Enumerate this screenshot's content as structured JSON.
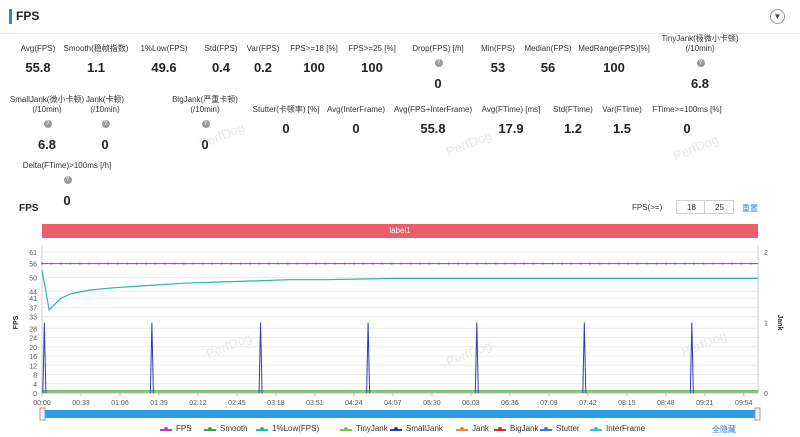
{
  "header": {
    "title": "FPS",
    "collapse_icon": "chevron-down-icon"
  },
  "metrics": [
    {
      "label": "Avg(FPS)",
      "value": "55.8",
      "help": false
    },
    {
      "label": "Smooth(稳帧指数)",
      "value": "1.1",
      "help": false
    },
    {
      "label": "1%Low(FPS)",
      "value": "49.6",
      "help": false
    },
    {
      "label": "Std(FPS)",
      "value": "0.4",
      "help": false
    },
    {
      "label": "Var(FPS)",
      "value": "0.2",
      "help": false
    },
    {
      "label": "FPS>=18 [%]",
      "value": "100",
      "help": false
    },
    {
      "label": "FPS>=25 [%]",
      "value": "100",
      "help": false
    },
    {
      "label": "Drop(FPS) [/h]",
      "value": "0",
      "help": true
    },
    {
      "label": "Min(FPS)",
      "value": "53",
      "help": false
    },
    {
      "label": "Median(FPS)",
      "value": "56",
      "help": false
    },
    {
      "label": "MedRange(FPS)[%]",
      "value": "100",
      "help": false
    },
    {
      "label": "TinyJank(极微小卡顿)\n(/10min)",
      "value": "6.8",
      "help": true
    },
    {
      "label": "SmallJank(微小卡顿)\n(/10min)",
      "value": "6.8",
      "help": true
    },
    {
      "label": "Jank(卡顿)\n(/10min)",
      "value": "0",
      "help": true
    },
    {
      "label": "BigJank(严重卡顿)\n(/10min)",
      "value": "0",
      "help": true
    },
    {
      "label": "Stutter(卡顿率) [%]",
      "value": "0",
      "help": false
    },
    {
      "label": "Avg(InterFrame)",
      "value": "0",
      "help": false
    },
    {
      "label": "Avg(FPS+InterFrame)",
      "value": "55.8",
      "help": false
    },
    {
      "label": "Avg(FTime) [ms]",
      "value": "17.9",
      "help": false
    },
    {
      "label": "Std(FTime)",
      "value": "1.2",
      "help": false
    },
    {
      "label": "Var(FTime)",
      "value": "1.5",
      "help": false
    },
    {
      "label": "FTime>=100ms [%]",
      "value": "0",
      "help": false
    },
    {
      "label": "Delta(FTime)>100ms [/h]",
      "value": "0",
      "help": true
    }
  ],
  "watermark": "PerfDog",
  "chart_section": {
    "title": "FPS",
    "filter_label": "FPS(>=)",
    "filter_low": "18",
    "filter_high": "25",
    "reset_label": "重置",
    "label_bar": "label1",
    "label_bar_color": "#ec5c6a",
    "hide_all_label": "全隐藏"
  },
  "chart_data": {
    "type": "line",
    "x_ticks": [
      "00:00",
      "00:33",
      "01:06",
      "01:39",
      "02:12",
      "02:45",
      "03:18",
      "03:51",
      "04:24",
      "04:57",
      "05:30",
      "06:03",
      "06:36",
      "07:09",
      "07:42",
      "08:15",
      "08:48",
      "09:21",
      "09:54"
    ],
    "x_tick_seconds": [
      0,
      33,
      66,
      99,
      132,
      165,
      198,
      231,
      264,
      297,
      330,
      363,
      396,
      429,
      462,
      495,
      528,
      561,
      594
    ],
    "x_range_seconds": [
      0,
      606
    ],
    "y_left_label": "FPS",
    "y_left_ticks": [
      0,
      4,
      8,
      12,
      16,
      20,
      24,
      28,
      33,
      37,
      41,
      44,
      50,
      56,
      61
    ],
    "y_left_range": [
      0,
      61
    ],
    "y_right_label": "Jank",
    "y_right_ticks": [
      0,
      1,
      2
    ],
    "y_right_range": [
      0,
      2
    ],
    "series": [
      {
        "name": "FPS",
        "color": "#c13dc1",
        "axis": "left",
        "values": [
          56,
          56,
          56,
          56,
          56,
          56,
          56,
          56,
          56,
          56,
          56,
          56,
          56,
          56,
          56,
          56,
          56,
          56,
          56,
          56,
          56
        ]
      },
      {
        "name": "Smooth",
        "color": "#3daa3d",
        "axis": "left",
        "values": [
          1,
          1,
          1,
          1,
          1,
          1,
          1,
          1,
          1,
          1,
          1,
          1,
          1,
          1,
          1,
          1,
          1,
          1,
          1,
          1,
          1
        ]
      },
      {
        "name": "1%Low(FPS)",
        "color": "#2bb5a8",
        "axis": "left",
        "x_seconds": [
          0,
          3,
          6,
          10,
          16,
          25,
          40,
          60,
          90,
          120,
          150,
          180,
          210,
          240,
          270,
          300,
          330,
          360,
          420,
          480,
          540,
          606
        ],
        "values": [
          53,
          45,
          36,
          38,
          41,
          43,
          44.5,
          45.5,
          46.5,
          47.5,
          48,
          48.5,
          49,
          49,
          49.3,
          49.6,
          49.6,
          49.6,
          49.6,
          49.6,
          49.6,
          49.6
        ]
      },
      {
        "name": "TinyJank",
        "color": "#7fc241",
        "axis": "right",
        "values": [
          0
        ]
      },
      {
        "name": "SmallJank",
        "color": "#2f3bb8",
        "axis": "right",
        "spikes_seconds": [
          2,
          93,
          185,
          276,
          368,
          459,
          550
        ],
        "values": [
          1,
          1,
          1,
          1,
          1,
          1,
          1
        ]
      },
      {
        "name": "Jank",
        "color": "#ef8532",
        "axis": "right",
        "values": [
          0
        ]
      },
      {
        "name": "BigJank",
        "color": "#d62f2f",
        "axis": "right",
        "values": [
          0
        ]
      },
      {
        "name": "Stutter",
        "color": "#3a7bd5",
        "axis": "right",
        "values": [
          0
        ]
      },
      {
        "name": "InterFrame",
        "color": "#2ec4d8",
        "axis": "left",
        "values": [
          0
        ]
      }
    ]
  }
}
